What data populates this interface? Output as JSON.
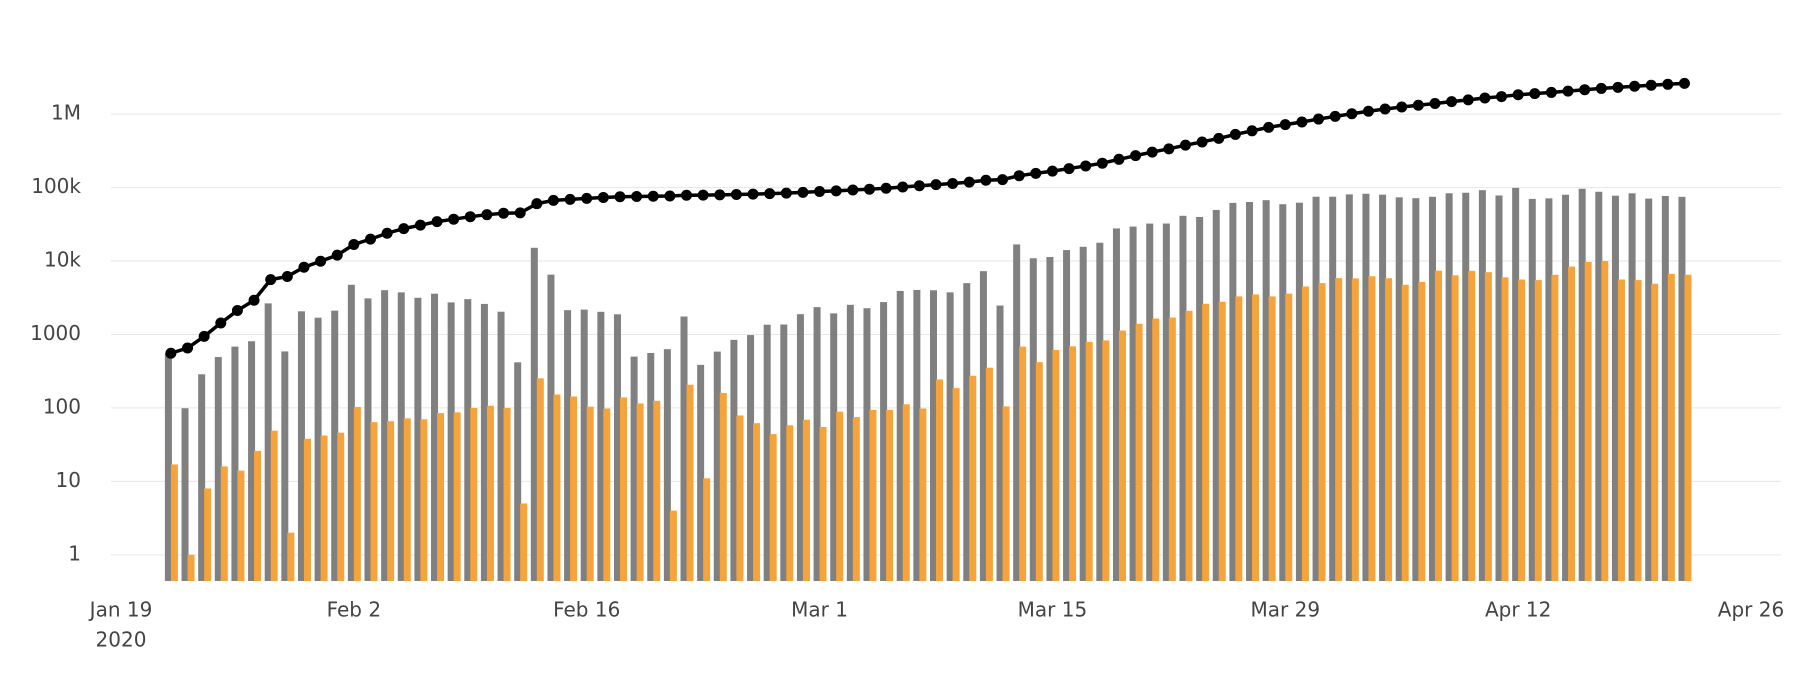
{
  "chart_data": {
    "type": "bar",
    "log_y": true,
    "grid": true,
    "x": [
      "2020-01-22",
      "2020-01-23",
      "2020-01-24",
      "2020-01-25",
      "2020-01-26",
      "2020-01-27",
      "2020-01-28",
      "2020-01-29",
      "2020-01-30",
      "2020-01-31",
      "2020-02-01",
      "2020-02-02",
      "2020-02-03",
      "2020-02-04",
      "2020-02-05",
      "2020-02-06",
      "2020-02-07",
      "2020-02-08",
      "2020-02-09",
      "2020-02-10",
      "2020-02-11",
      "2020-02-12",
      "2020-02-13",
      "2020-02-14",
      "2020-02-15",
      "2020-02-16",
      "2020-02-17",
      "2020-02-18",
      "2020-02-19",
      "2020-02-20",
      "2020-02-21",
      "2020-02-22",
      "2020-02-23",
      "2020-02-24",
      "2020-02-25",
      "2020-02-26",
      "2020-02-27",
      "2020-02-28",
      "2020-02-29",
      "2020-03-01",
      "2020-03-02",
      "2020-03-03",
      "2020-03-04",
      "2020-03-05",
      "2020-03-06",
      "2020-03-07",
      "2020-03-08",
      "2020-03-09",
      "2020-03-10",
      "2020-03-11",
      "2020-03-12",
      "2020-03-13",
      "2020-03-14",
      "2020-03-15",
      "2020-03-16",
      "2020-03-17",
      "2020-03-18",
      "2020-03-19",
      "2020-03-20",
      "2020-03-21",
      "2020-03-22",
      "2020-03-23",
      "2020-03-24",
      "2020-03-25",
      "2020-03-26",
      "2020-03-27",
      "2020-03-28",
      "2020-03-29",
      "2020-03-30",
      "2020-03-31",
      "2020-04-01",
      "2020-04-02",
      "2020-04-03",
      "2020-04-04",
      "2020-04-05",
      "2020-04-06",
      "2020-04-07",
      "2020-04-08",
      "2020-04-09",
      "2020-04-10",
      "2020-04-11",
      "2020-04-12",
      "2020-04-13",
      "2020-04-14",
      "2020-04-15",
      "2020-04-16",
      "2020-04-17",
      "2020-04-18",
      "2020-04-19",
      "2020-04-20",
      "2020-04-21",
      "2020-04-22"
    ],
    "series": [
      {
        "type": "bar",
        "color": "#808080",
        "values": [
          555,
          99,
          287,
          493,
          684,
          809,
          2651,
          588,
          2068,
          1693,
          2111,
          4749,
          3100,
          4011,
          3745,
          3159,
          3593,
          2734,
          3030,
          2609,
          2042,
          418,
          15153,
          6527,
          2144,
          2183,
          2035,
          1882,
          500,
          560,
          631,
          1756,
          386,
          585,
          845,
          982,
          1359,
          1368,
          1889,
          2358,
          1938,
          2535,
          2280,
          2762,
          3914,
          4036,
          3999,
          3747,
          5000,
          7283,
          2478,
          16850,
          10904,
          11352,
          14097,
          15622,
          17747,
          27798,
          29454,
          32361,
          32425,
          41282,
          39810,
          49608,
          61938,
          63700,
          67415,
          59411,
          62248,
          75122,
          75118,
          80861,
          82451,
          80143,
          73694,
          71727,
          74995,
          83726,
          85076,
          92248,
          78124,
          99071,
          70117,
          71353,
          79863,
          96383,
          87753,
          77569,
          83619,
          70881,
          76864,
          74837
        ]
      },
      {
        "type": "bar",
        "color": "#f5a33a",
        "values": [
          17,
          1,
          8,
          16,
          14,
          26,
          49,
          2,
          38,
          42,
          46,
          103,
          64,
          66,
          72,
          70,
          85,
          87,
          100,
          107,
          100,
          5,
          253,
          152,
          143,
          104,
          98,
          139,
          115,
          125,
          4,
          207,
          11,
          160,
          79,
          62,
          44,
          58,
          69,
          55,
          89,
          75,
          94,
          94,
          112,
          98,
          244,
          186,
          274,
          353,
          105,
          684,
          420,
          617,
          690,
          792,
          830,
          1130,
          1400,
          1650,
          1700,
          2100,
          2620,
          2790,
          3300,
          3500,
          3300,
          3600,
          4500,
          5000,
          5850,
          5800,
          6200,
          5830,
          4750,
          5200,
          7400,
          6400,
          7350,
          7050,
          6000,
          5600,
          5500,
          6500,
          8400,
          9700,
          10000,
          5600,
          5500,
          4900,
          6700,
          6500
        ]
      },
      {
        "type": "line",
        "color": "#000000",
        "values": [
          555,
          654,
          941,
          1434,
          2118,
          2927,
          5578,
          6166,
          8234,
          9927,
          12038,
          16787,
          19887,
          23898,
          27643,
          30802,
          34395,
          37129,
          40159,
          42768,
          44810,
          45228,
          60381,
          66908,
          69052,
          71235,
          73270,
          75152,
          75652,
          76212,
          76843,
          78599,
          78985,
          79570,
          80415,
          81397,
          82756,
          84124,
          86013,
          88371,
          90309,
          92844,
          95124,
          97886,
          101800,
          105836,
          109835,
          113582,
          118582,
          125865,
          128343,
          145193,
          156097,
          167449,
          181546,
          197168,
          214915,
          242713,
          272167,
          304528,
          336953,
          378235,
          418045,
          467653,
          529591,
          593291,
          660706,
          720117,
          782365,
          857487,
          932605,
          1013466,
          1095917,
          1176060,
          1249754,
          1321481,
          1396476,
          1480202,
          1565278,
          1657526,
          1735650,
          1834721,
          1904838,
          1976191,
          2056054,
          2152437,
          2240190,
          2317759,
          2401378,
          2472259,
          2549123,
          2623960
        ]
      }
    ],
    "xlim": [
      "2020-01-19",
      "2020-04-26"
    ],
    "xticks": [
      {
        "value": "2020-01-19",
        "label": "Jan 19"
      },
      {
        "value": "2020-02-02",
        "label": "Feb 2"
      },
      {
        "value": "2020-02-16",
        "label": "Feb 16"
      },
      {
        "value": "2020-03-01",
        "label": "Mar 1"
      },
      {
        "value": "2020-03-15",
        "label": "Mar 15"
      },
      {
        "value": "2020-03-29",
        "label": "Mar 29"
      },
      {
        "value": "2020-04-12",
        "label": "Apr 12"
      },
      {
        "value": "2020-04-26",
        "label": "Apr 26"
      }
    ],
    "x_year_label": "2020",
    "ylim": [
      0.44,
      6000000
    ],
    "yticks": [
      1,
      10,
      100,
      1000,
      {
        "value": 10000,
        "label": "10k"
      },
      {
        "value": 100000,
        "label": "100k"
      },
      {
        "value": 1000000,
        "label": "1M"
      }
    ]
  }
}
